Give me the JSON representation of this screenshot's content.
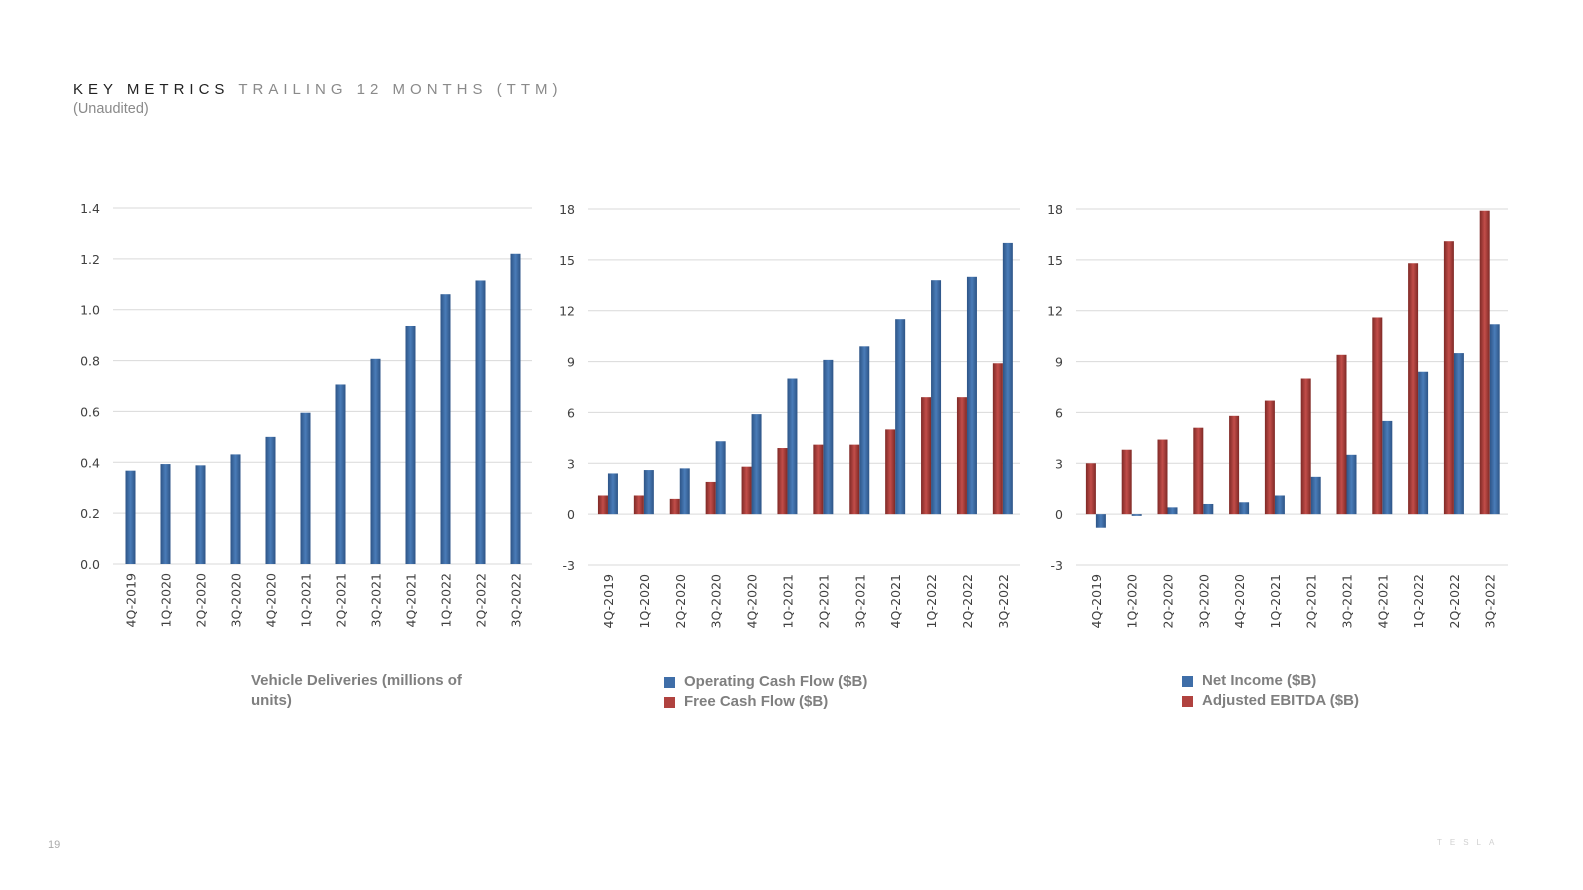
{
  "header": {
    "title_main": "KEY METRICS",
    "title_sub": "TRAILING 12 MONTHS (TTM)",
    "subtitle": "(Unaudited)"
  },
  "footer": {
    "page_number": "19",
    "logo_text": "TESLA"
  },
  "colors": {
    "blue": "#3f6ea8",
    "blue_edge": "#2d5486",
    "red": "#b0423f",
    "red_edge": "#7e2926",
    "grid": "#d9d9d9",
    "tick_text": "#404040",
    "legend_text": "#7f7f7f"
  },
  "chart_data": [
    {
      "type": "bar",
      "categories": [
        "4Q-2019",
        "1Q-2020",
        "2Q-2020",
        "3Q-2020",
        "4Q-2020",
        "1Q-2021",
        "2Q-2021",
        "3Q-2021",
        "4Q-2021",
        "1Q-2022",
        "2Q-2022",
        "3Q-2022"
      ],
      "ylim": [
        0,
        1.4
      ],
      "yticks": [
        "0.0",
        "0.2",
        "0.4",
        "0.6",
        "0.8",
        "1.0",
        "1.2",
        "1.4"
      ],
      "ytick_values": [
        0,
        0.2,
        0.4,
        0.6,
        0.8,
        1.0,
        1.2,
        1.4
      ],
      "grid": true,
      "legend_position": "bottom",
      "series": [
        {
          "name": "Vehicle Deliveries (millions of units)",
          "color": "#3f6ea8",
          "values": [
            0.367,
            0.393,
            0.388,
            0.431,
            0.5,
            0.595,
            0.706,
            0.807,
            0.936,
            1.061,
            1.115,
            1.22
          ]
        }
      ]
    },
    {
      "type": "bar",
      "categories": [
        "4Q-2019",
        "1Q-2020",
        "2Q-2020",
        "3Q-2020",
        "4Q-2020",
        "1Q-2021",
        "2Q-2021",
        "3Q-2021",
        "4Q-2021",
        "1Q-2022",
        "2Q-2022",
        "3Q-2022"
      ],
      "ylim": [
        -3,
        18
      ],
      "yticks": [
        "-3",
        "0",
        "3",
        "6",
        "9",
        "12",
        "15",
        "18"
      ],
      "ytick_values": [
        -3,
        0,
        3,
        6,
        9,
        12,
        15,
        18
      ],
      "grid": true,
      "legend_position": "bottom",
      "series": [
        {
          "name": "Operating Cash Flow ($B)",
          "color": "#3f6ea8",
          "values": [
            2.4,
            2.6,
            2.7,
            4.3,
            5.9,
            8.0,
            9.1,
            9.9,
            11.5,
            13.8,
            14.0,
            16.0
          ]
        },
        {
          "name": "Free Cash Flow ($B)",
          "color": "#b0423f",
          "values": [
            1.1,
            1.1,
            0.9,
            1.9,
            2.8,
            3.9,
            4.1,
            4.1,
            5.0,
            6.9,
            6.9,
            8.9
          ]
        }
      ]
    },
    {
      "type": "bar",
      "categories": [
        "4Q-2019",
        "1Q-2020",
        "2Q-2020",
        "3Q-2020",
        "4Q-2020",
        "1Q-2021",
        "2Q-2021",
        "3Q-2021",
        "4Q-2021",
        "1Q-2022",
        "2Q-2022",
        "3Q-2022"
      ],
      "ylim": [
        -3,
        18
      ],
      "yticks": [
        "-3",
        "0",
        "3",
        "6",
        "9",
        "12",
        "15",
        "18"
      ],
      "ytick_values": [
        -3,
        0,
        3,
        6,
        9,
        12,
        15,
        18
      ],
      "grid": true,
      "legend_position": "bottom",
      "series": [
        {
          "name": "Net Income ($B)",
          "color": "#3f6ea8",
          "values": [
            -0.8,
            -0.1,
            0.4,
            0.6,
            0.7,
            1.1,
            2.2,
            3.5,
            5.5,
            8.4,
            9.5,
            11.2
          ]
        },
        {
          "name": "Adjusted EBITDA ($B)",
          "color": "#b0423f",
          "values": [
            3.0,
            3.8,
            4.4,
            5.1,
            5.8,
            6.7,
            8.0,
            9.4,
            11.6,
            14.8,
            16.1,
            17.9
          ]
        }
      ]
    }
  ]
}
